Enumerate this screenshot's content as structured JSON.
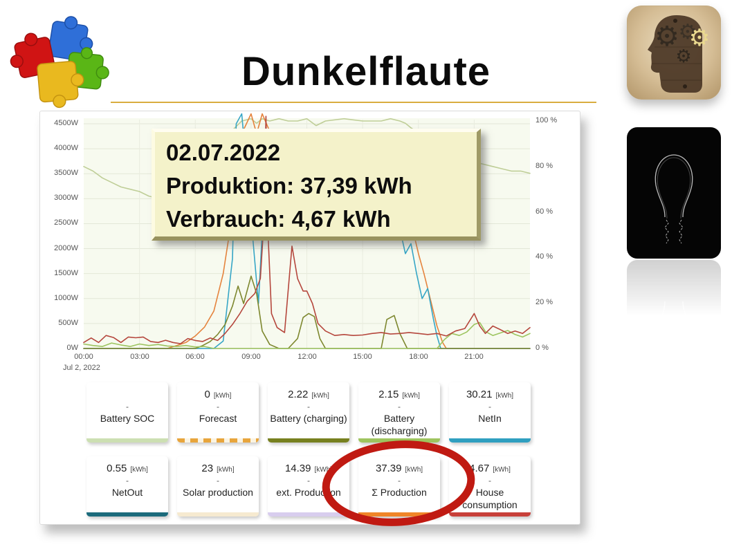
{
  "slide": {
    "title": "Dunkelflaute"
  },
  "images": {
    "puzzle_logo": "four-interlocking-puzzle-pieces",
    "head_gears": "head-profile-with-gears",
    "light_bulb": "light-bulb-outline-on-black"
  },
  "annotation_box": {
    "line1": "02.07.2022",
    "line2": "Produktion: 37,39 kWh",
    "line3": "Verbrauch: 4,67 kWh"
  },
  "chart_data": {
    "type": "line",
    "title": "",
    "x_axis": {
      "ticks": [
        "00:00",
        "03:00",
        "06:00",
        "09:00",
        "12:00",
        "15:00",
        "18:00",
        "21:00"
      ],
      "sub_label": "Jul 2, 2022",
      "range_hours": [
        0,
        24
      ]
    },
    "y_left": {
      "ticks": [
        "4500W",
        "4000W",
        "3500W",
        "3000W",
        "2500W",
        "2000W",
        "1500W",
        "1000W",
        "500W",
        "0W"
      ],
      "range_w": [
        0,
        4700
      ]
    },
    "y_right": {
      "ticks": [
        "100 %",
        "80 %",
        "60 %",
        "40 %",
        "20 %",
        "0 %"
      ],
      "range_pct": [
        0,
        104
      ]
    },
    "grid": true,
    "legend": "none",
    "series": [
      {
        "name": "Battery SOC",
        "axis": "right",
        "color": "#bfce97",
        "x": [
          0,
          0.5,
          1,
          1.5,
          2,
          2.5,
          3,
          3.5,
          4,
          4.5,
          5,
          5.5,
          6,
          6.5,
          7,
          7.5,
          8,
          8.5,
          9,
          9.3,
          9.6,
          10,
          10.5,
          11,
          11.5,
          12,
          12.5,
          13,
          14,
          15,
          16,
          16.5,
          17,
          17.3,
          17.6,
          18,
          18.5,
          19,
          19.5,
          20,
          20.5,
          21,
          21.5,
          22,
          22.5,
          23,
          23.5,
          24
        ],
        "y": [
          80,
          78,
          75,
          73,
          71,
          70,
          69,
          67,
          66,
          64,
          63,
          61,
          59,
          62,
          75,
          88,
          96,
          100,
          101,
          99,
          101,
          100,
          101,
          100,
          100,
          101,
          98,
          100,
          101,
          100,
          100,
          101,
          100,
          99,
          97,
          95,
          92,
          89,
          87,
          85,
          83,
          82,
          81,
          80,
          79,
          78,
          78,
          77
        ]
      },
      {
        "name": "Σ Production",
        "axis": "left",
        "color": "#e5833d",
        "x": [
          0,
          4.5,
          5,
          5.5,
          6,
          6.5,
          7,
          7.5,
          8,
          8.5,
          9,
          9.3,
          9.6,
          10,
          11,
          12,
          13,
          14,
          15,
          16,
          16.5,
          17,
          17.5,
          18,
          18.3,
          18.6,
          19,
          19.3,
          19.5,
          24
        ],
        "y": [
          0,
          0,
          60,
          120,
          250,
          430,
          750,
          1500,
          2700,
          4300,
          4700,
          4300,
          4700,
          4350,
          4300,
          4350,
          4300,
          4250,
          4200,
          4150,
          4000,
          3300,
          2700,
          1900,
          1500,
          1050,
          450,
          120,
          0,
          0
        ]
      },
      {
        "name": "NetIn",
        "axis": "left",
        "color": "#36a6c6",
        "x": [
          0,
          7,
          7.5,
          8,
          8.2,
          8.5,
          9,
          9.4,
          9.8,
          10,
          10.5,
          11,
          12,
          13,
          14,
          15,
          16,
          16.4,
          16.8,
          17,
          17.3,
          17.6,
          17.9,
          18.2,
          18.5,
          18.8,
          19,
          19.2,
          24
        ],
        "y": [
          0,
          0,
          150,
          1800,
          4500,
          4700,
          2600,
          900,
          3800,
          4100,
          3700,
          3600,
          3400,
          3400,
          3350,
          3300,
          3250,
          3100,
          2700,
          2400,
          1900,
          2100,
          1500,
          1000,
          1200,
          600,
          250,
          0,
          0
        ]
      },
      {
        "name": "Battery (charging)",
        "axis": "left",
        "color": "#7d872e",
        "x": [
          0,
          6,
          6.4,
          6.8,
          7.2,
          7.6,
          8,
          8.3,
          8.6,
          9,
          9.3,
          9.6,
          10,
          10.5,
          11,
          11.5,
          11.8,
          12.1,
          12.4,
          12.7,
          13,
          16,
          16.3,
          16.7,
          17,
          17.4,
          24
        ],
        "y": [
          0,
          0,
          60,
          140,
          280,
          480,
          850,
          1250,
          900,
          1450,
          1100,
          350,
          80,
          0,
          0,
          200,
          620,
          700,
          640,
          200,
          0,
          0,
          580,
          660,
          300,
          0,
          0
        ]
      },
      {
        "name": "Battery (discharging)",
        "axis": "left",
        "color": "#9cc45e",
        "x": [
          0,
          0.5,
          1,
          1.5,
          2,
          2.5,
          3,
          3.5,
          4,
          4.5,
          5,
          5.5,
          6,
          6.5,
          7,
          19,
          19.4,
          19.8,
          20.2,
          20.6,
          21,
          21.3,
          21.6,
          22,
          22.4,
          22.8,
          23.2,
          23.6,
          24
        ],
        "y": [
          90,
          60,
          40,
          110,
          70,
          40,
          90,
          60,
          80,
          50,
          40,
          60,
          30,
          40,
          0,
          0,
          180,
          300,
          260,
          330,
          480,
          520,
          340,
          260,
          310,
          360,
          280,
          230,
          300
        ]
      },
      {
        "name": "House consumption",
        "axis": "left",
        "color": "#b5463c",
        "x": [
          0,
          0.4,
          0.8,
          1.2,
          1.6,
          2,
          2.4,
          2.8,
          3.2,
          3.6,
          4,
          4.4,
          4.8,
          5.2,
          5.6,
          6,
          6.4,
          6.8,
          7.2,
          7.6,
          8,
          8.4,
          8.8,
          9.2,
          9.5,
          9.7,
          9.8,
          9.9,
          10.1,
          10.4,
          10.8,
          11.2,
          11.5,
          11.8,
          12,
          12.3,
          12.6,
          13,
          13.5,
          14,
          14.5,
          15,
          15.5,
          16,
          16.5,
          17,
          17.5,
          18,
          18.5,
          19,
          19.5,
          20,
          20.5,
          21,
          21.3,
          21.6,
          22,
          22.4,
          22.8,
          23.2,
          23.6,
          24
        ],
        "y": [
          120,
          210,
          120,
          260,
          220,
          120,
          230,
          215,
          230,
          140,
          120,
          165,
          120,
          95,
          200,
          160,
          140,
          210,
          160,
          300,
          480,
          700,
          950,
          1100,
          1400,
          2600,
          4650,
          2400,
          700,
          420,
          320,
          2050,
          1400,
          1150,
          1150,
          900,
          500,
          350,
          260,
          280,
          260,
          270,
          300,
          320,
          290,
          300,
          320,
          300,
          280,
          300,
          250,
          350,
          400,
          700,
          450,
          300,
          450,
          380,
          300,
          350,
          300,
          420
        ]
      }
    ]
  },
  "cards": [
    {
      "value": "",
      "unit": "",
      "separator": "-",
      "label": "Battery SOC",
      "accent": "#ccdfb2",
      "dashed": false
    },
    {
      "value": "0",
      "unit": "[kWh]",
      "separator": "-",
      "label": "Forecast",
      "accent": "#e8a53c",
      "dashed": true
    },
    {
      "value": "2.22",
      "unit": "[kWh]",
      "separator": "-",
      "label": "Battery (charging)",
      "accent": "#77801f",
      "dashed": false
    },
    {
      "value": "2.15",
      "unit": "[kWh]",
      "separator": "-",
      "label": "Battery (discharging)",
      "accent": "#9ec45e",
      "dashed": false
    },
    {
      "value": "30.21",
      "unit": "[kWh]",
      "separator": "-",
      "label": "NetIn",
      "accent": "#2f9fc0",
      "dashed": false
    },
    {
      "value": "0.55",
      "unit": "[kWh]",
      "separator": "-",
      "label": "NetOut",
      "accent": "#1c6b7c",
      "dashed": false
    },
    {
      "value": "23",
      "unit": "[kWh]",
      "separator": "-",
      "label": "Solar production",
      "accent": "#f6ead0",
      "dashed": false
    },
    {
      "value": "14.39",
      "unit": "[kWh]",
      "separator": "-",
      "label": "ext. Production",
      "accent": "#d8cdee",
      "dashed": false
    },
    {
      "value": "37.39",
      "unit": "[kWh]",
      "separator": "-",
      "label": "Σ Production",
      "accent": "#f08528",
      "dashed": false
    },
    {
      "value": "4.67",
      "unit": "[kWh]",
      "separator": "-",
      "label": "House consumption",
      "accent": "#c8403a",
      "dashed": false
    }
  ],
  "highlight": {
    "shape": "ellipse",
    "color": "#c01a12",
    "around": "Σ Production"
  }
}
